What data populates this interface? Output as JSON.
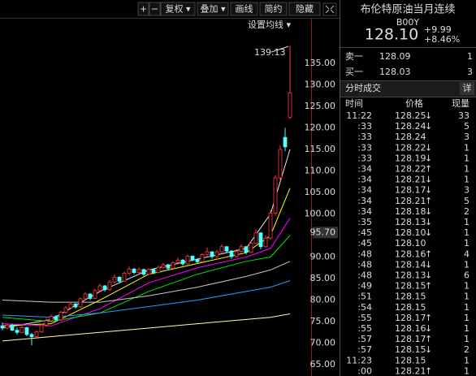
{
  "toolbar": {
    "buttons": [
      "+",
      "−",
      "复权 ▾",
      "叠加 ▾",
      "画线",
      "简约",
      "隐藏"
    ]
  },
  "ma_setting": "设置均线 ▾",
  "chart_data": {
    "type": "candlestick",
    "up_color": "#ff3c3c",
    "down_color": "#54ffff",
    "ylim": [
      62.36,
      142.17
    ],
    "yticks": [
      {
        "value": 65,
        "label": "65.00"
      },
      {
        "value": 70,
        "label": "70.00"
      },
      {
        "value": 75,
        "label": "75.00"
      },
      {
        "value": 80,
        "label": "80.00"
      },
      {
        "value": 85,
        "label": "85.00"
      },
      {
        "value": 90,
        "label": "90.00"
      },
      {
        "value": 100,
        "label": "100.00"
      },
      {
        "value": 105,
        "label": "105.00"
      },
      {
        "value": 110,
        "label": "110.00"
      },
      {
        "value": 115,
        "label": "115.00"
      },
      {
        "value": 120,
        "label": "120.00"
      },
      {
        "value": 125,
        "label": "125.00"
      },
      {
        "value": 130,
        "label": "130.00"
      },
      {
        "value": 135,
        "label": "135.00"
      }
    ],
    "cursor_price": {
      "value": 95.7,
      "label": "95.70"
    },
    "candles": [
      [
        74,
        74.8,
        73,
        73.5
      ],
      [
        73.5,
        74.6,
        73.2,
        74.2
      ],
      [
        74.2,
        74.5,
        72.8,
        73
      ],
      [
        73,
        73.6,
        72,
        72.5
      ],
      [
        72.5,
        74,
        72.3,
        73.6
      ],
      [
        73.6,
        73.8,
        71.6,
        72
      ],
      [
        72,
        72.4,
        69.5,
        71.5
      ],
      [
        71.5,
        73,
        71.2,
        72.6
      ],
      [
        72.6,
        74.5,
        72.4,
        74.2
      ],
      [
        74.2,
        75.8,
        73.8,
        75.2
      ],
      [
        75.2,
        76.6,
        74.8,
        76.2
      ],
      [
        76.2,
        76.5,
        75,
        75.4
      ],
      [
        75.4,
        77.5,
        75.2,
        77.2
      ],
      [
        77.2,
        78.6,
        76.8,
        78.2
      ],
      [
        78.2,
        79.6,
        77.8,
        79.1
      ],
      [
        79.1,
        79.3,
        78,
        78.4
      ],
      [
        78.4,
        80.6,
        78.2,
        80.3
      ],
      [
        80.3,
        81.8,
        79.9,
        81.4
      ],
      [
        81.4,
        81.6,
        80,
        80.4
      ],
      [
        80.4,
        82.6,
        80.2,
        82.2
      ],
      [
        82.2,
        83.8,
        81.8,
        83.3
      ],
      [
        83.3,
        83.5,
        82,
        82.4
      ],
      [
        82.4,
        84.6,
        82.2,
        84.2
      ],
      [
        84.2,
        86,
        83.8,
        85.3
      ],
      [
        85.3,
        85.6,
        84,
        84.4
      ],
      [
        84.4,
        86.6,
        84.2,
        86.2
      ],
      [
        86.2,
        87.8,
        85.8,
        87.2
      ],
      [
        87.2,
        87.5,
        86,
        86.4
      ],
      [
        86.4,
        87.6,
        86,
        87.1
      ],
      [
        87.1,
        87.3,
        85.6,
        86
      ],
      [
        86,
        87.4,
        85.8,
        87.1
      ],
      [
        87.1,
        87.3,
        86,
        86.4
      ],
      [
        86.4,
        88,
        86.2,
        87.6
      ],
      [
        87.6,
        88.6,
        87.2,
        88.2
      ],
      [
        88.2,
        88.4,
        87,
        87.4
      ],
      [
        87.4,
        89,
        87.2,
        88.7
      ],
      [
        88.7,
        89.9,
        88.3,
        89.3
      ],
      [
        89.3,
        89.5,
        88,
        88.4
      ],
      [
        88.4,
        90.6,
        88.2,
        90.2
      ],
      [
        90.2,
        90.4,
        89,
        89.4
      ],
      [
        89.4,
        89.8,
        88.4,
        88.9
      ],
      [
        88.9,
        90.9,
        88.7,
        90.6
      ],
      [
        90.6,
        92.2,
        90.2,
        91.2
      ],
      [
        91.2,
        91.4,
        89.6,
        90.1
      ],
      [
        90.1,
        91.6,
        89.9,
        91.2
      ],
      [
        91.2,
        93,
        91,
        92.4
      ],
      [
        92.4,
        92.6,
        91,
        91.4
      ],
      [
        91.4,
        91.6,
        89.6,
        90.1
      ],
      [
        90.1,
        91.8,
        89.9,
        91.3
      ],
      [
        91.3,
        93,
        91,
        92.4
      ],
      [
        92.4,
        92.6,
        90.6,
        91.1
      ],
      [
        91.1,
        93.6,
        90.9,
        93.2
      ],
      [
        93.2,
        96.4,
        93,
        95.6
      ],
      [
        95.6,
        95.8,
        91.8,
        92.4
      ],
      [
        92.4,
        95,
        92.2,
        94.4
      ],
      [
        94.4,
        101,
        94,
        100.2
      ],
      [
        100.2,
        109,
        99.6,
        108.4
      ],
      [
        108.4,
        116,
        107.8,
        115
      ],
      [
        117.8,
        120,
        114.6,
        115.6
      ],
      [
        122.5,
        139.13,
        122,
        128.1
      ]
    ],
    "series": [
      {
        "color": "#e8e8e8",
        "x": [
          0,
          10,
          20,
          30,
          40,
          50,
          55,
          59
        ],
        "values": [
          73.5,
          75.5,
          82,
          87,
          89.5,
          92,
          100,
          115
        ]
      },
      {
        "color": "#ffff00",
        "x": [
          0,
          10,
          20,
          30,
          40,
          50,
          55,
          59
        ],
        "values": [
          74,
          74.5,
          80,
          86,
          88.5,
          91,
          95,
          106
        ]
      },
      {
        "color": "#ff00ff",
        "x": [
          0,
          10,
          20,
          30,
          40,
          50,
          55,
          59
        ],
        "values": [
          74.5,
          74,
          78,
          84,
          87.5,
          90,
          92,
          99
        ]
      },
      {
        "color": "#00e600",
        "x": [
          0,
          10,
          20,
          30,
          40,
          50,
          55,
          59
        ],
        "values": [
          76,
          75,
          77,
          82,
          86,
          89,
          90,
          95
        ]
      },
      {
        "color": "#c8c8c8",
        "x": [
          0,
          10,
          20,
          30,
          40,
          50,
          55,
          59
        ],
        "values": [
          80,
          79.5,
          79.5,
          81,
          83,
          85.5,
          87,
          89
        ]
      },
      {
        "color": "#1ea0ff",
        "x": [
          0,
          10,
          20,
          30,
          40,
          50,
          55,
          59
        ],
        "values": [
          76.5,
          76,
          77,
          78.5,
          80,
          82,
          83,
          84.5
        ]
      },
      {
        "color": "#ffffa0",
        "x": [
          0,
          10,
          20,
          30,
          40,
          50,
          55,
          59
        ],
        "values": [
          70.5,
          71.5,
          72.5,
          73.5,
          74.5,
          75.5,
          76,
          76.8
        ]
      }
    ]
  },
  "quote": {
    "name": "布伦特原油当月连续",
    "code": "B00Y",
    "price": "128.10",
    "change": "+9.99",
    "change_pct": "+8.46%"
  },
  "order_book": [
    [
      "卖一",
      "128.09",
      1
    ],
    [
      "买一",
      "128.03",
      3
    ]
  ],
  "trades": {
    "title": "分时成交",
    "detail": "详",
    "columns": [
      "时间",
      "价格",
      "现量"
    ],
    "rows": [
      {
        "time": "11:22",
        "price": "128.25",
        "dir": "↓",
        "vol": 33
      },
      {
        "time": ":33",
        "price": "128.24",
        "dir": "↓",
        "vol": 5
      },
      {
        "time": ":33",
        "price": "128.24",
        "vol": 3
      },
      {
        "time": ":33",
        "price": "128.22",
        "dir": "↓",
        "vol": 1
      },
      {
        "time": ":33",
        "price": "128.19",
        "dir": "↓",
        "vol": 1
      },
      {
        "time": ":34",
        "price": "128.22",
        "dir": "↑",
        "vol": 1
      },
      {
        "time": ":34",
        "price": "128.21",
        "dir": "↓",
        "vol": 1
      },
      {
        "time": ":34",
        "price": "128.17",
        "dir": "↓",
        "vol": 3
      },
      {
        "time": ":34",
        "price": "128.21",
        "dir": "↑",
        "vol": 5
      },
      {
        "time": ":34",
        "price": "128.18",
        "dir": "↓",
        "vol": 2
      },
      {
        "time": ":35",
        "price": "128.13",
        "dir": "↓",
        "vol": 1
      },
      {
        "time": ":45",
        "price": "128.10",
        "dir": "↓",
        "vol": 1
      },
      {
        "time": ":45",
        "price": "128.10",
        "vol": 1
      },
      {
        "time": ":48",
        "price": "128.16",
        "dir": "↑",
        "vol": 4
      },
      {
        "time": ":48",
        "price": "128.14",
        "dir": "↓",
        "vol": 1
      },
      {
        "time": ":48",
        "price": "128.13",
        "dir": "↓",
        "vol": 6
      },
      {
        "time": ":49",
        "price": "128.15",
        "dir": "↑",
        "vol": 1
      },
      {
        "time": ":51",
        "price": "128.15",
        "vol": 1
      },
      {
        "time": ":54",
        "price": "128.15",
        "vol": 1
      },
      {
        "time": ":55",
        "price": "128.17",
        "dir": "↑",
        "vol": 1
      },
      {
        "time": ":55",
        "price": "128.16",
        "dir": "↓",
        "vol": 1
      },
      {
        "time": ":57",
        "price": "128.17",
        "dir": "↑",
        "vol": 1
      },
      {
        "time": ":57",
        "price": "128.15",
        "dir": "↓",
        "vol": 2
      },
      {
        "time": "11:23",
        "price": "128.15",
        "vol": 1
      },
      {
        "time": ":00",
        "price": "128.21",
        "dir": "↑",
        "vol": 1
      }
    ]
  }
}
